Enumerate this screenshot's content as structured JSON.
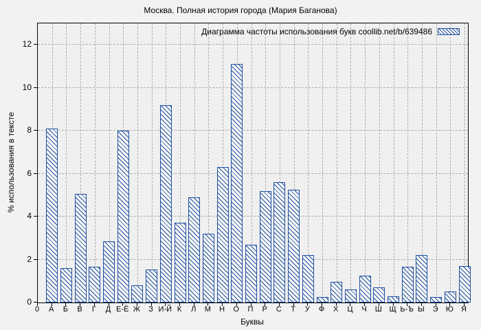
{
  "title": "Москва. Полная история города (Мария Баганова)",
  "legend": {
    "label": "Диаграмма частоты использования букв coollib.net/b/639486",
    "swatch": "blue-hatched-bar"
  },
  "axes": {
    "y_label": "% использования в тексте",
    "x_label": "Буквы",
    "y_ticks": [
      0,
      2,
      4,
      6,
      8,
      10,
      12
    ],
    "x_origin_label": "0"
  },
  "colors": {
    "bar_border": "#1d4fa0",
    "bar_fill": "#f7f7f7",
    "grid": "#ababab",
    "figure_background": "#f2f2f2",
    "plot_background": "#f0f0f0",
    "text": "#000000"
  },
  "chart_data": {
    "type": "bar",
    "title": "Москва. Полная история города (Мария Баганова)",
    "legend_entry": "Диаграмма частоты использования букв coollib.net/b/639486",
    "xlabel": "Буквы",
    "ylabel": "% использования в тексте",
    "ylim": [
      0,
      13
    ],
    "y_tick_step": 2,
    "grid": true,
    "legend_position": "top-right",
    "bar_style": "hatched",
    "categories": [
      "А",
      "Б",
      "В",
      "Г",
      "Д",
      "Е-Ё",
      "Ж",
      "З",
      "И-Й",
      "К",
      "Л",
      "М",
      "Н",
      "О",
      "П",
      "Р",
      "С",
      "Т",
      "У",
      "Ф",
      "Х",
      "Ц",
      "Ч",
      "Ш",
      "Щ",
      "Ь-Ъ",
      "Ы",
      "Э",
      "Ю",
      "Я"
    ],
    "values": [
      8.1,
      1.6,
      5.05,
      1.65,
      2.85,
      8.0,
      0.8,
      1.55,
      9.2,
      3.7,
      4.9,
      3.2,
      6.3,
      11.1,
      2.7,
      5.2,
      5.6,
      5.25,
      2.2,
      0.25,
      0.95,
      0.6,
      1.25,
      0.7,
      0.3,
      1.65,
      2.2,
      0.25,
      0.5,
      1.7
    ]
  }
}
